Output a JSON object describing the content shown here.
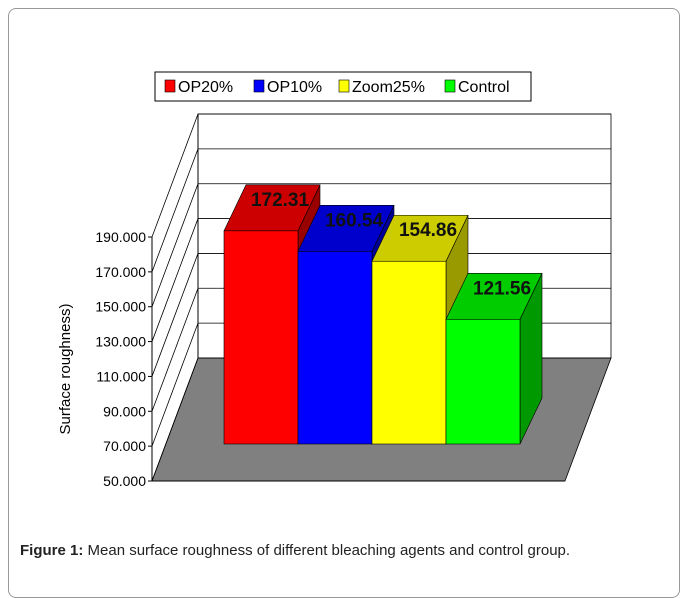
{
  "chart_data": {
    "type": "bar3d",
    "categories": [
      "OP20%",
      "OP10%",
      "Zoom25%",
      "Control"
    ],
    "values": [
      172.31,
      160.54,
      154.86,
      121.56
    ],
    "colors": [
      "#ff0000",
      "#0000ff",
      "#ffff00",
      "#00ff00"
    ],
    "ylabel": "Surface roughness)",
    "ylim": [
      50,
      190
    ],
    "yticks": [
      {
        "value": 50,
        "label": "50.000"
      },
      {
        "value": 70,
        "label": "70.000"
      },
      {
        "value": 90,
        "label": "90.000"
      },
      {
        "value": 110,
        "label": "110.000"
      },
      {
        "value": 130,
        "label": "130.000"
      },
      {
        "value": 150,
        "label": "150.000"
      },
      {
        "value": 170,
        "label": "170.000"
      },
      {
        "value": 190,
        "label": "190.000"
      }
    ],
    "grid": true,
    "legend": "top"
  },
  "caption": {
    "label": "Figure 1:",
    "text": "Mean surface roughness of different bleaching agents and control group."
  }
}
